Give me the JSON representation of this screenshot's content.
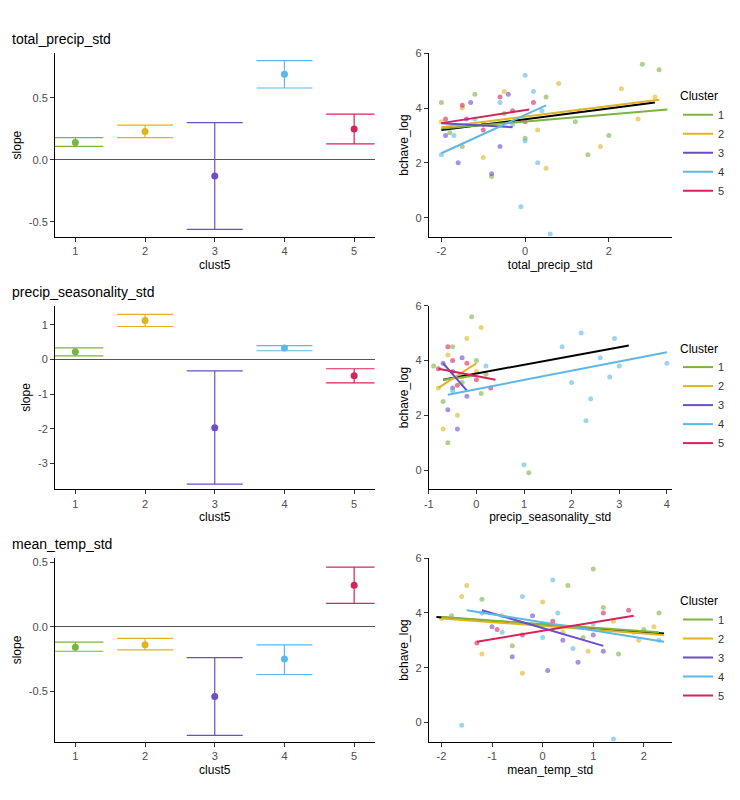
{
  "chart_data": [
    {
      "type": "errorbar",
      "title": "total_precip_std",
      "x_label": "clust5",
      "y_label": "slope",
      "categories": [
        "1",
        "2",
        "3",
        "4",
        "5"
      ],
      "values": [
        0.14,
        0.23,
        -0.13,
        0.69,
        0.25
      ],
      "ci_low": [
        0.11,
        0.18,
        -0.56,
        0.58,
        0.13
      ],
      "ci_high": [
        0.18,
        0.28,
        0.3,
        0.8,
        0.37
      ],
      "colors": [
        "#7cb342",
        "#e0b41f",
        "#6a4fc8",
        "#5bb8e8",
        "#d6245a"
      ],
      "ylim": [
        -0.62,
        0.86
      ],
      "yticks": [
        -0.5,
        {
          "value": 0,
          "label": "0.0"
        },
        0.5
      ],
      "grid": false
    },
    {
      "type": "scatter",
      "x_label": "total_precip_std",
      "y_label": "bchave_log",
      "legend_title": "Cluster",
      "legend": "right",
      "xlim": [
        -2.3,
        3.5
      ],
      "xticks": [
        -2,
        0,
        2
      ],
      "ylim": [
        -0.7,
        6
      ],
      "yticks": [
        0,
        2,
        4,
        6
      ],
      "grid": false,
      "marker": "circle",
      "series": [
        {
          "name": "1",
          "color": "#7cb342",
          "x": [
            -2,
            -1.8,
            -1.5,
            -1.2,
            -0.5,
            0,
            0.5,
            1.2,
            2,
            2.8,
            3.2,
            -0.8,
            1.5
          ],
          "y": [
            4.2,
            3.1,
            2.6,
            4.5,
            3.8,
            2.9,
            4.4,
            3.5,
            3.0,
            5.6,
            5.4,
            1.5,
            2.3
          ],
          "fit_x": [
            -2,
            3.4
          ],
          "fit_y": [
            3.25,
            3.95
          ]
        },
        {
          "name": "2",
          "color": "#e0b41f",
          "x": [
            -2,
            -1.5,
            -1,
            -0.5,
            0.3,
            0.8,
            1.3,
            1.8,
            2.3,
            2.7,
            3.1,
            0.5
          ],
          "y": [
            3.5,
            4.0,
            2.2,
            4.6,
            3.2,
            4.9,
            3.9,
            2.6,
            4.7,
            3.6,
            4.4,
            1.8
          ],
          "fit_x": [
            -2,
            3.2
          ],
          "fit_y": [
            3.3,
            4.3
          ]
        },
        {
          "name": "3",
          "color": "#6a4fc8",
          "x": [
            -1.9,
            -1.6,
            -1.3,
            -1.0,
            -0.8,
            -0.6,
            -0.4,
            -1.4
          ],
          "y": [
            3.0,
            2.0,
            4.2,
            3.4,
            1.6,
            2.6,
            4.5,
            3.6
          ],
          "fit_x": [
            -2,
            -0.3
          ],
          "fit_y": [
            3.45,
            3.3
          ]
        },
        {
          "name": "4",
          "color": "#5bb8e8",
          "x": [
            -2,
            -1.7,
            -1.2,
            -0.6,
            -0.3,
            0,
            0,
            0.2,
            0.4,
            -0.1,
            0.6,
            0.3
          ],
          "y": [
            2.3,
            3.0,
            3.6,
            4.2,
            3.4,
            5.2,
            2.8,
            4.6,
            3.9,
            0.4,
            -0.6,
            2.0
          ],
          "fit_x": [
            -2,
            0.5
          ],
          "fit_y": [
            2.35,
            4.1
          ]
        },
        {
          "name": "5",
          "color": "#d6245a",
          "x": [
            -1.9,
            -1.5,
            -1.0,
            -0.6,
            -0.3,
            0,
            0.2
          ],
          "y": [
            3.6,
            4.1,
            3.2,
            4.4,
            3.9,
            3.5,
            4.2
          ],
          "fit_x": [
            -2,
            0.1
          ],
          "fit_y": [
            3.45,
            3.95
          ]
        }
      ],
      "overall_fit": {
        "color": "#000000",
        "x": [
          -2,
          3.1
        ],
        "y": [
          3.2,
          4.2
        ]
      }
    },
    {
      "type": "errorbar",
      "title": "precip_seasonality_std",
      "x_label": "clust5",
      "y_label": "slope",
      "categories": [
        "1",
        "2",
        "3",
        "4",
        "5"
      ],
      "values": [
        0.22,
        1.12,
        -1.97,
        0.33,
        -0.47
      ],
      "ci_low": [
        0.1,
        0.95,
        -3.6,
        0.25,
        -0.68
      ],
      "ci_high": [
        0.33,
        1.3,
        -0.33,
        0.4,
        -0.27
      ],
      "colors": [
        "#7cb342",
        "#e0b41f",
        "#6a4fc8",
        "#5bb8e8",
        "#d6245a"
      ],
      "ylim": [
        -3.75,
        1.55
      ],
      "yticks": [
        -3,
        -2,
        -1,
        0,
        1
      ],
      "grid": false
    },
    {
      "type": "scatter",
      "x_label": "precip_seasonality_std",
      "y_label": "bchave_log",
      "legend_title": "Cluster",
      "legend": "right",
      "xlim": [
        -1,
        4.1
      ],
      "xticks": [
        -1,
        0,
        1,
        2,
        3,
        4
      ],
      "ylim": [
        -0.7,
        6
      ],
      "yticks": [
        0,
        2,
        4,
        6
      ],
      "grid": false,
      "marker": "circle",
      "series": [
        {
          "name": "1",
          "color": "#7cb342",
          "x": [
            -0.9,
            -0.7,
            -0.5,
            -0.3,
            -0.1,
            0,
            0.1,
            -0.6,
            0.2,
            1.1
          ],
          "y": [
            3.8,
            2.5,
            4.5,
            3.2,
            5.6,
            4.0,
            2.8,
            1.0,
            3.5,
            -0.1
          ],
          "fit_x": [
            -0.7,
            0
          ],
          "fit_y": [
            3.3,
            3.45
          ]
        },
        {
          "name": "2",
          "color": "#e0b41f",
          "x": [
            -0.8,
            -0.6,
            -0.4,
            -0.2,
            0,
            0.1,
            -0.7,
            -0.3
          ],
          "y": [
            3.0,
            4.2,
            2.0,
            4.8,
            3.6,
            5.2,
            1.5,
            3.4
          ],
          "fit_x": [
            -0.8,
            0
          ],
          "fit_y": [
            3.0,
            3.9
          ]
        },
        {
          "name": "3",
          "color": "#6a4fc8",
          "x": [
            -0.7,
            -0.6,
            -0.5,
            -0.4,
            -0.3,
            -0.2,
            -0.5
          ],
          "y": [
            3.9,
            2.2,
            3.0,
            1.5,
            4.1,
            2.7,
            3.6
          ],
          "fit_x": [
            -0.7,
            -0.2
          ],
          "fit_y": [
            3.9,
            2.9
          ]
        },
        {
          "name": "4",
          "color": "#5bb8e8",
          "x": [
            -0.5,
            0.2,
            1.8,
            2.0,
            2.2,
            2.4,
            2.6,
            2.8,
            2.3,
            2.9,
            3.0,
            4.0,
            1.0
          ],
          "y": [
            2.9,
            3.8,
            4.5,
            3.2,
            5.0,
            2.6,
            4.1,
            3.4,
            1.8,
            4.8,
            3.8,
            3.9,
            0.2
          ],
          "fit_x": [
            -0.6,
            4.0
          ],
          "fit_y": [
            2.75,
            4.3
          ]
        },
        {
          "name": "5",
          "color": "#d6245a",
          "x": [
            -0.8,
            -0.6,
            -0.4,
            -0.2,
            0,
            0.3,
            -0.5
          ],
          "y": [
            3.7,
            4.5,
            3.1,
            3.9,
            3.3,
            3.0,
            4.0
          ],
          "fit_x": [
            -0.8,
            0.4
          ],
          "fit_y": [
            3.7,
            3.3
          ]
        }
      ],
      "overall_fit": {
        "color": "#000000",
        "x": [
          -0.7,
          3.2
        ],
        "y": [
          3.3,
          4.55
        ]
      }
    },
    {
      "type": "errorbar",
      "title": "mean_temp_std",
      "x_label": "clust5",
      "y_label": "slope",
      "categories": [
        "1",
        "2",
        "3",
        "4",
        "5"
      ],
      "values": [
        -0.16,
        -0.14,
        -0.54,
        -0.25,
        0.32
      ],
      "ci_low": [
        -0.19,
        -0.18,
        -0.84,
        -0.37,
        0.18
      ],
      "ci_high": [
        -0.12,
        -0.09,
        -0.24,
        -0.14,
        0.46
      ],
      "colors": [
        "#7cb342",
        "#e0b41f",
        "#6a4fc8",
        "#5bb8e8",
        "#d6245a"
      ],
      "ylim": [
        -0.89,
        0.53
      ],
      "yticks": [
        -0.5,
        {
          "value": 0,
          "label": "0.0"
        },
        0.5
      ],
      "grid": false
    },
    {
      "type": "scatter",
      "x_label": "mean_temp_std",
      "y_label": "bchave_log",
      "legend_title": "Cluster",
      "legend": "right",
      "xlim": [
        -2.25,
        2.55
      ],
      "xticks": [
        -2,
        -1,
        0,
        1,
        2
      ],
      "ylim": [
        -0.7,
        6
      ],
      "yticks": [
        0,
        2,
        4,
        6
      ],
      "grid": false,
      "marker": "circle",
      "series": [
        {
          "name": "1",
          "color": "#7cb342",
          "x": [
            -1.8,
            -1.2,
            -0.6,
            0,
            0.5,
            0.8,
            1.2,
            1.5,
            2.0,
            2.3,
            1.0
          ],
          "y": [
            3.9,
            4.5,
            2.8,
            3.6,
            5.0,
            3.1,
            4.2,
            2.5,
            3.4,
            4.0,
            5.6
          ],
          "fit_x": [
            -2,
            2.3
          ],
          "fit_y": [
            3.85,
            3.3
          ]
        },
        {
          "name": "2",
          "color": "#e0b41f",
          "x": [
            -2,
            -1.6,
            -1.2,
            -0.8,
            -0.4,
            0,
            0.4,
            0.9,
            1.4,
            1.9,
            2.2,
            -1.5
          ],
          "y": [
            3.8,
            4.6,
            2.5,
            3.9,
            1.8,
            4.4,
            3.3,
            2.6,
            3.7,
            3.0,
            3.5,
            5.0
          ],
          "fit_x": [
            -2,
            2.4
          ],
          "fit_y": [
            3.8,
            3.2
          ]
        },
        {
          "name": "3",
          "color": "#6a4fc8",
          "x": [
            -1.0,
            -0.6,
            -0.2,
            0.1,
            0.4,
            0.7,
            1.0,
            1.2
          ],
          "y": [
            3.5,
            2.4,
            3.9,
            1.9,
            3.0,
            2.2,
            3.2,
            2.6
          ],
          "fit_x": [
            -1.2,
            1.2
          ],
          "fit_y": [
            4.1,
            2.8
          ]
        },
        {
          "name": "4",
          "color": "#5bb8e8",
          "x": [
            -1.6,
            -1.2,
            -0.8,
            -0.4,
            0,
            0.3,
            0.6,
            1.0,
            1.4,
            1.8,
            2.3,
            0.2
          ],
          "y": [
            -0.1,
            4.0,
            3.3,
            4.6,
            3.1,
            4.0,
            2.7,
            3.6,
            -0.6,
            3.3,
            3.0,
            5.2
          ],
          "fit_x": [
            -1.5,
            2.4
          ],
          "fit_y": [
            4.1,
            2.95
          ]
        },
        {
          "name": "5",
          "color": "#d6245a",
          "x": [
            -1.3,
            -0.9,
            -0.4,
            0.2,
            0.7,
            1.2,
            1.7
          ],
          "y": [
            2.9,
            3.4,
            3.2,
            3.7,
            3.5,
            4.0,
            4.1
          ],
          "fit_x": [
            -1.3,
            1.8
          ],
          "fit_y": [
            2.95,
            3.9
          ]
        }
      ],
      "overall_fit": {
        "color": "#000000",
        "x": [
          -2.1,
          2.4
        ],
        "y": [
          3.85,
          3.25
        ]
      }
    }
  ]
}
